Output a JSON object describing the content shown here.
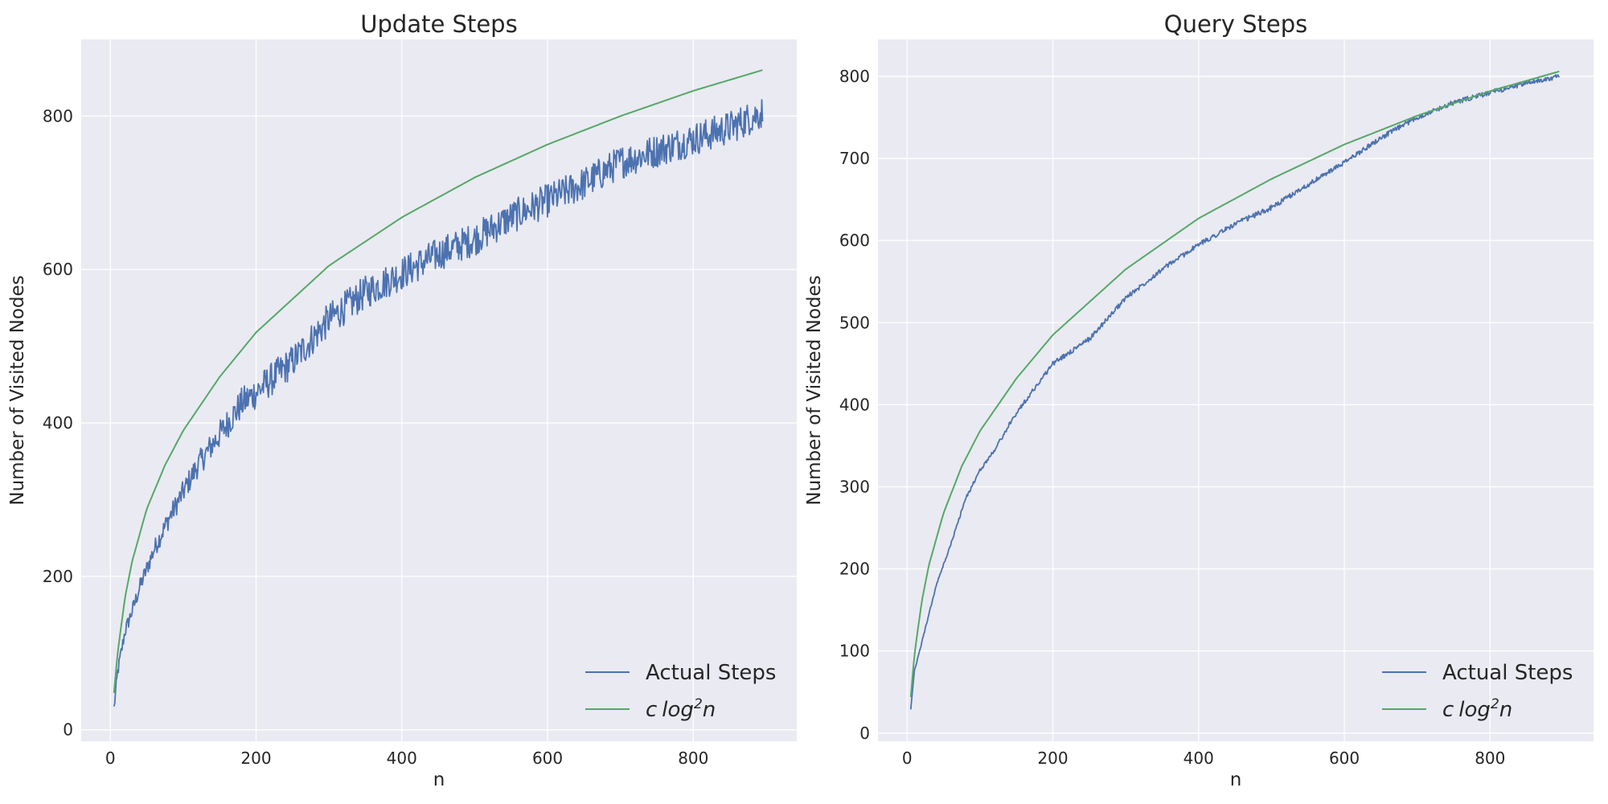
{
  "colors": {
    "actual": "#4c72b0",
    "theory": "#55a868",
    "axes_bg": "#eaeaf2",
    "grid": "#ffffff"
  },
  "chart_data": [
    {
      "type": "line",
      "title": "Update Steps",
      "xlabel": "n",
      "ylabel": "Number of Visited Nodes",
      "xlim": [
        -40,
        942
      ],
      "ylim": [
        -15,
        900
      ],
      "xticks": [
        0,
        200,
        400,
        600,
        800
      ],
      "yticks": [
        0,
        200,
        400,
        600,
        800
      ],
      "grid": true,
      "legend": "lower right",
      "legend_entries": {
        "actual": "Actual Steps",
        "theory_c": "c",
        "theory_log": "log",
        "theory_sup": "2",
        "theory_n": "n"
      },
      "series": [
        {
          "name": "Actual Steps",
          "color": "#4c72b0",
          "x": [
            5,
            10,
            20,
            30,
            40,
            50,
            60,
            80,
            100,
            120,
            150,
            180,
            200,
            250,
            300,
            350,
            400,
            450,
            500,
            550,
            600,
            650,
            700,
            750,
            800,
            850,
            895
          ],
          "y": [
            28,
            75,
            128,
            155,
            185,
            210,
            235,
            275,
            310,
            345,
            385,
            425,
            440,
            480,
            535,
            570,
            595,
            620,
            640,
            668,
            690,
            712,
            740,
            755,
            770,
            785,
            805
          ],
          "noise": 22
        },
        {
          "name": "c log²n",
          "color": "#55a868",
          "x": [
            5,
            10,
            20,
            30,
            50,
            75,
            100,
            150,
            200,
            300,
            400,
            500,
            600,
            700,
            800,
            895
          ],
          "y": [
            48,
            100,
            172,
            220,
            288,
            345,
            390,
            460,
            518,
            605,
            668,
            720,
            763,
            800,
            833,
            860
          ]
        }
      ]
    },
    {
      "type": "line",
      "title": "Query Steps",
      "xlabel": "n",
      "ylabel": "Number of Visited Nodes",
      "xlim": [
        -40,
        942
      ],
      "ylim": [
        -10,
        845
      ],
      "xticks": [
        0,
        200,
        400,
        600,
        800
      ],
      "yticks": [
        0,
        100,
        200,
        300,
        400,
        500,
        600,
        700,
        800
      ],
      "grid": true,
      "legend": "lower right",
      "legend_entries": {
        "actual": "Actual Steps",
        "theory_c": "c",
        "theory_log": "log",
        "theory_sup": "2",
        "theory_n": "n"
      },
      "series": [
        {
          "name": "Actual Steps",
          "color": "#4c72b0",
          "x": [
            5,
            10,
            20,
            30,
            40,
            50,
            60,
            80,
            100,
            120,
            150,
            200,
            250,
            300,
            350,
            400,
            450,
            500,
            550,
            600,
            650,
            700,
            750,
            800,
            850,
            895
          ],
          "y": [
            30,
            75,
            110,
            145,
            180,
            205,
            230,
            285,
            320,
            345,
            390,
            450,
            480,
            530,
            565,
            595,
            620,
            640,
            668,
            695,
            725,
            750,
            768,
            780,
            792,
            800
          ],
          "noise": 3
        },
        {
          "name": "c log²n",
          "color": "#55a868",
          "x": [
            5,
            10,
            20,
            30,
            50,
            75,
            100,
            150,
            200,
            300,
            400,
            500,
            600,
            700,
            800,
            895
          ],
          "y": [
            44,
            95,
            160,
            205,
            268,
            325,
            368,
            432,
            485,
            565,
            627,
            675,
            717,
            752,
            782,
            806
          ]
        }
      ]
    }
  ]
}
